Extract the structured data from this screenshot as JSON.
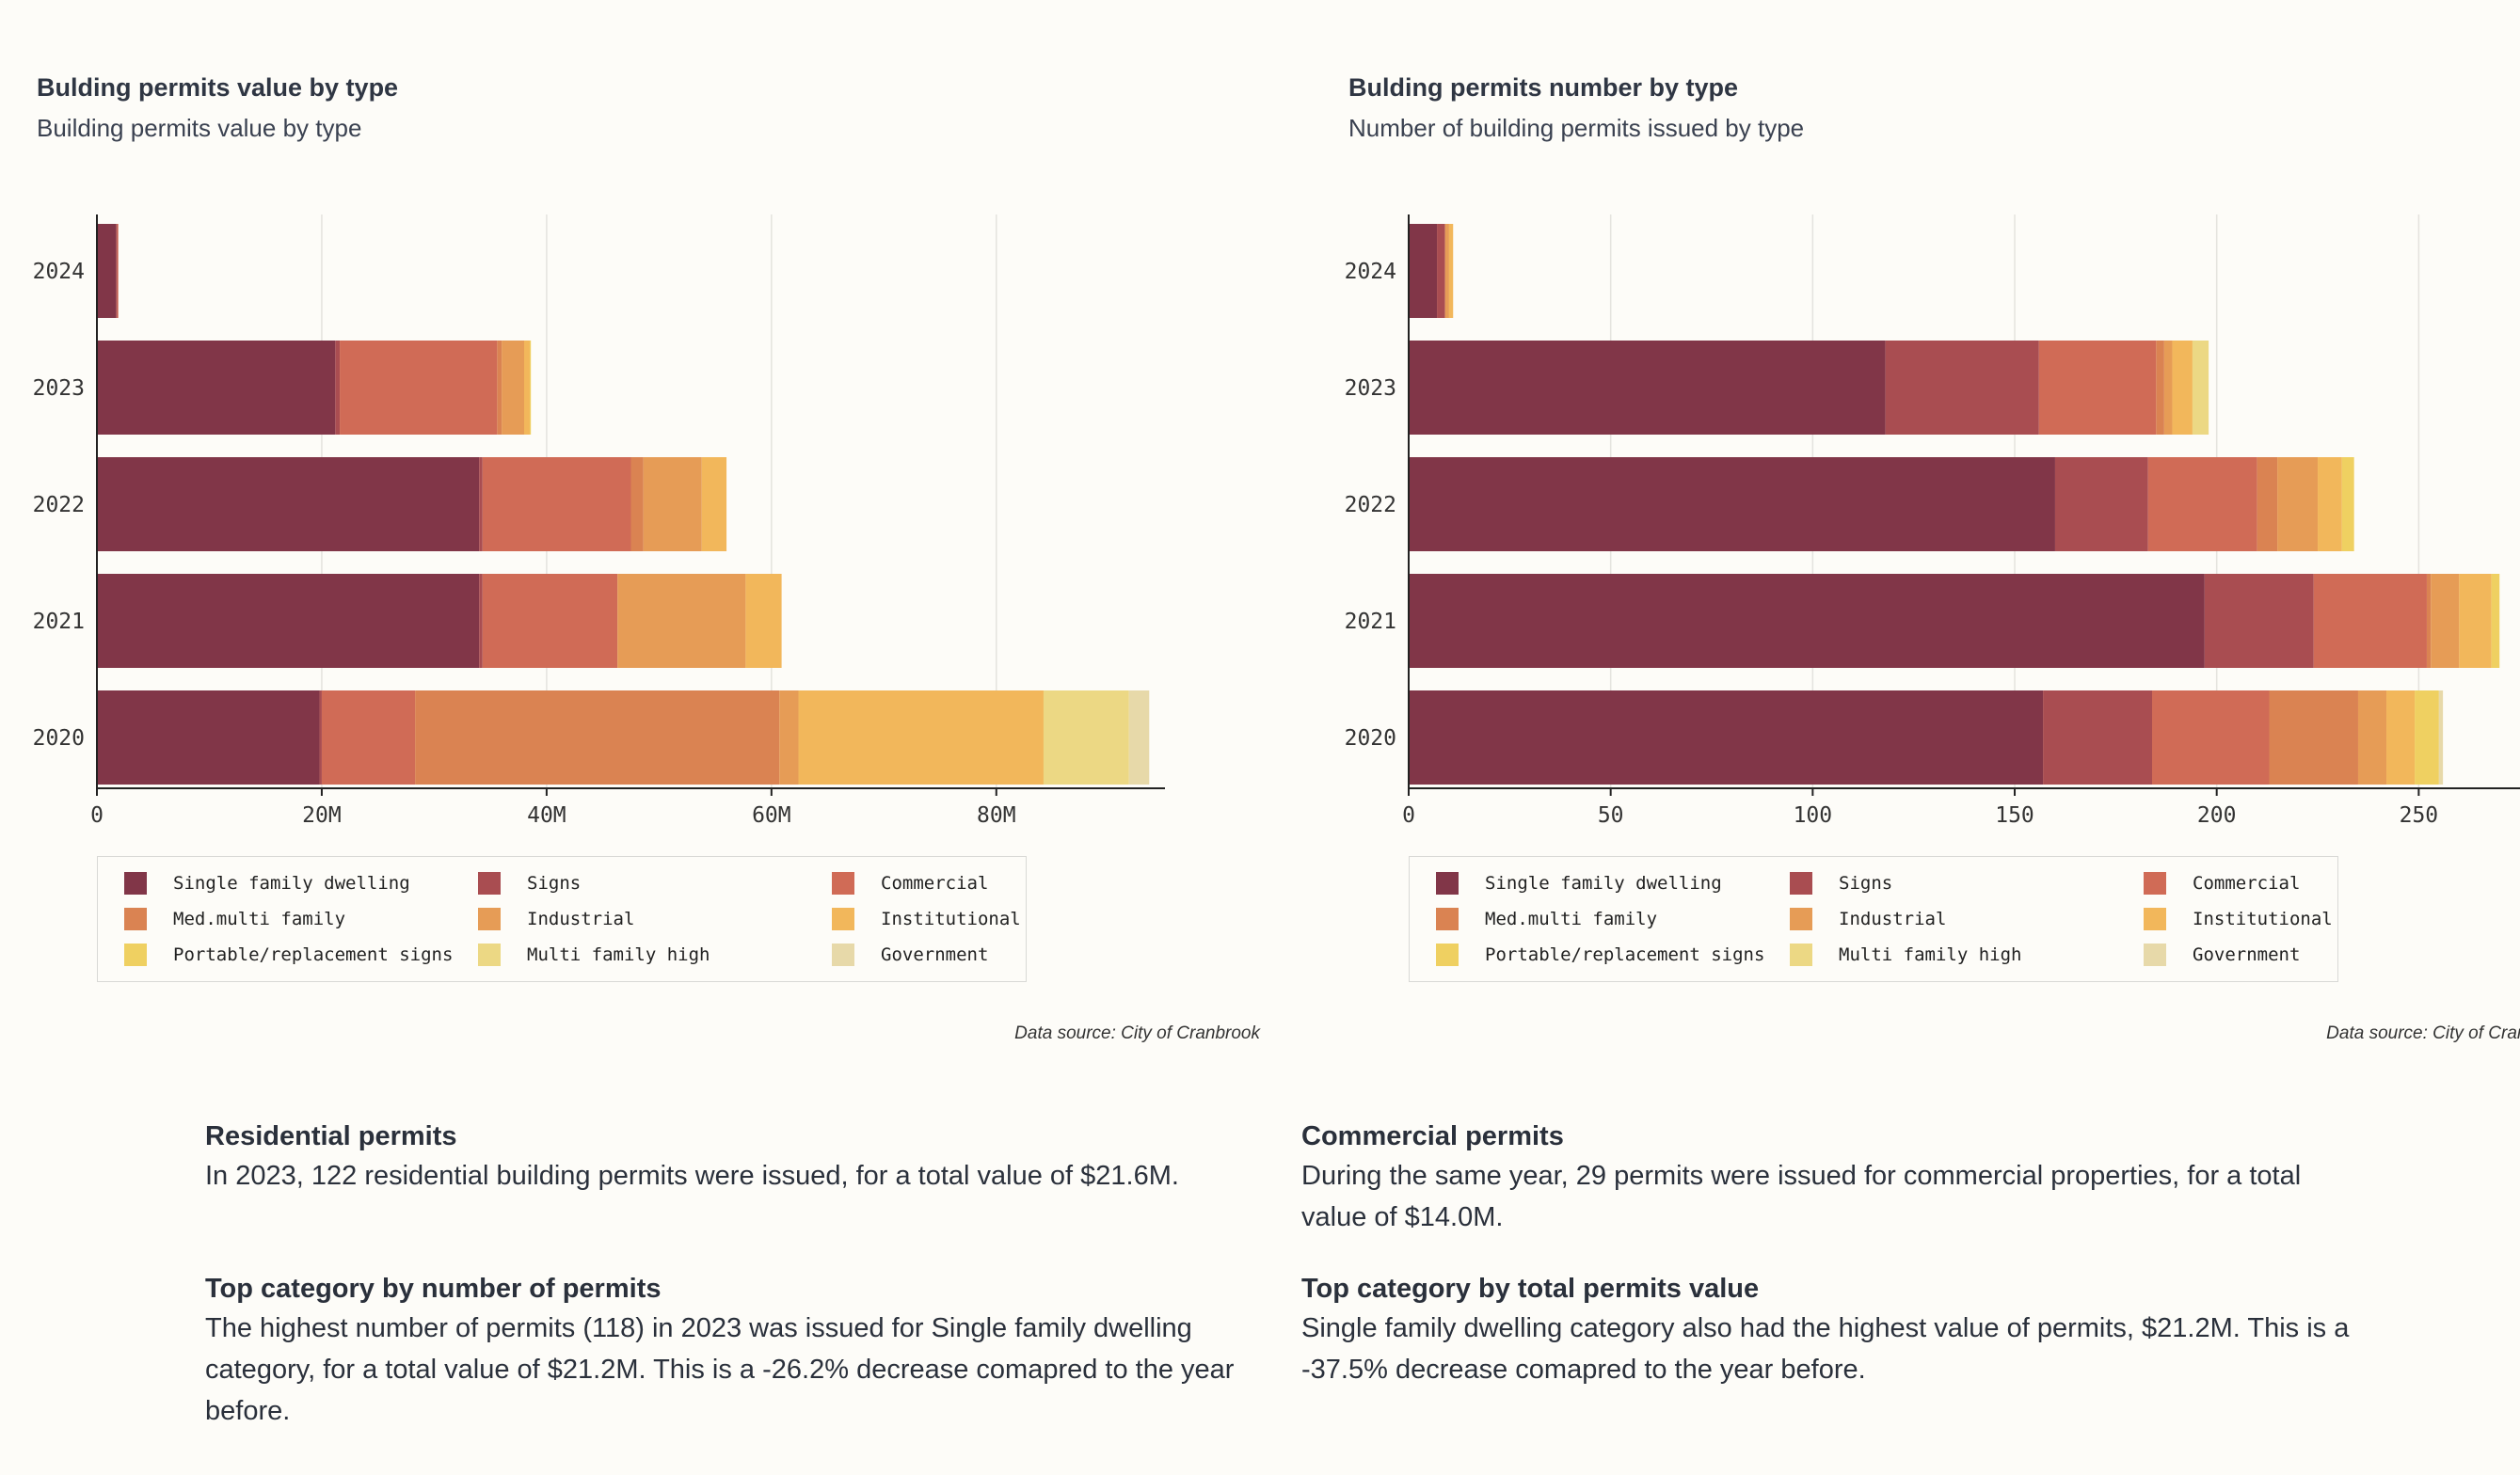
{
  "categories_order": [
    "Single family dwelling",
    "Signs",
    "Commercial",
    "Med.multi family",
    "Industrial",
    "Institutional",
    "Portable/replacement signs",
    "Multi family high",
    "Government"
  ],
  "colors": {
    "Single family dwelling": "#813648",
    "Signs": "#a94d51",
    "Commercial": "#d06b56",
    "Med.multi family": "#da8352",
    "Industrial": "#e69c56",
    "Institutional": "#f2b75b",
    "Portable/replacement signs": "#efd061",
    "Multi family high": "#ecd884",
    "Government": "#e7d9a9"
  },
  "charts": [
    {
      "title": "Bulding permits value by type",
      "subtitle": "Building permits value by type",
      "source": "Data source: City of Cranbrook"
    },
    {
      "title": "Bulding permits number by type",
      "subtitle": "Number of building permits issued by type",
      "source": "Data source: City of Cranbrook"
    }
  ],
  "chart_data": [
    {
      "type": "bar",
      "orientation": "horizontal-stacked",
      "title": "Bulding permits value by type",
      "subtitle": "Building permits value by type",
      "categories": [
        "2024",
        "2023",
        "2022",
        "2021",
        "2020"
      ],
      "xlim": [
        0,
        95000000
      ],
      "xticks": [
        0,
        20000000,
        40000000,
        60000000,
        80000000
      ],
      "xtick_labels": [
        "0",
        "20M",
        "40M",
        "60M",
        "80M"
      ],
      "series": [
        {
          "name": "Single family dwelling",
          "values": [
            1700000,
            21200000,
            34000000,
            34000000,
            19800000
          ]
        },
        {
          "name": "Signs",
          "values": [
            100000,
            400000,
            300000,
            300000,
            200000
          ]
        },
        {
          "name": "Commercial",
          "values": [
            100000,
            14000000,
            13200000,
            12000000,
            8300000
          ]
        },
        {
          "name": "Med.multi family",
          "values": [
            0,
            400000,
            1100000,
            0,
            32400000
          ]
        },
        {
          "name": "Industrial",
          "values": [
            0,
            2000000,
            5200000,
            11400000,
            1700000
          ]
        },
        {
          "name": "Institutional",
          "values": [
            0,
            500000,
            2200000,
            3200000,
            21800000
          ]
        },
        {
          "name": "Portable/replacement signs",
          "values": [
            0,
            100000,
            0,
            0,
            0
          ]
        },
        {
          "name": "Multi family high",
          "values": [
            0,
            0,
            0,
            0,
            7600000
          ]
        },
        {
          "name": "Government",
          "values": [
            0,
            0,
            0,
            0,
            1800000
          ]
        }
      ]
    },
    {
      "type": "bar",
      "orientation": "horizontal-stacked",
      "title": "Bulding permits number by type",
      "subtitle": "Number of building permits issued by type",
      "categories": [
        "2024",
        "2023",
        "2022",
        "2021",
        "2020"
      ],
      "xlim": [
        0,
        276
      ],
      "xticks": [
        0,
        50,
        100,
        150,
        200,
        250
      ],
      "xtick_labels": [
        "0",
        "50",
        "100",
        "150",
        "200",
        "250"
      ],
      "series": [
        {
          "name": "Single family dwelling",
          "values": [
            7,
            118,
            160,
            197,
            157
          ]
        },
        {
          "name": "Signs",
          "values": [
            2,
            38,
            23,
            27,
            27
          ]
        },
        {
          "name": "Commercial",
          "values": [
            0,
            29,
            27,
            28,
            29
          ]
        },
        {
          "name": "Med.multi family",
          "values": [
            0,
            2,
            5,
            1,
            22
          ]
        },
        {
          "name": "Industrial",
          "values": [
            1,
            2,
            10,
            7,
            7
          ]
        },
        {
          "name": "Institutional",
          "values": [
            1,
            5,
            6,
            8,
            7
          ]
        },
        {
          "name": "Portable/replacement signs",
          "values": [
            0,
            0,
            3,
            2,
            6
          ]
        },
        {
          "name": "Multi family high",
          "values": [
            0,
            4,
            0,
            0,
            0
          ]
        },
        {
          "name": "Government",
          "values": [
            0,
            0,
            0,
            0,
            1
          ]
        }
      ]
    }
  ],
  "insights": {
    "residential": {
      "heading": "Residential permits",
      "text": "In 2023, 122 residential building permits were issued, for a total value of $21.6M."
    },
    "commercial": {
      "heading": "Commercial permits",
      "text": "During the same year, 29 permits were issued for commercial properties, for a total value of $14.0M."
    },
    "top_number": {
      "heading": "Top category by number of permits",
      "text": "The highest number of permits (118) in 2023 was issued for Single family dwelling category, for a total value of $21.2M. This is a -26.2% decrease comapred to the year before."
    },
    "top_value": {
      "heading": "Top category by total permits value",
      "text": "Single family dwelling category also had the highest value of permits, $21.2M. This is a -37.5% decrease comapred to the year before."
    }
  }
}
